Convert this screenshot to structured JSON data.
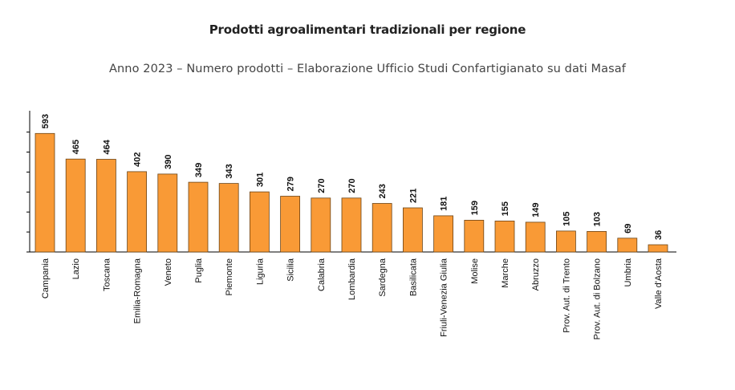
{
  "chart_data": {
    "type": "bar",
    "title": "Prodotti agroalimentari tradizionali per regione",
    "subtitle": "Anno 2023 – Numero prodotti – Elaborazione Ufficio Studi Confartigianato su dati Masaf",
    "categories": [
      "Campania",
      "Lazio",
      "Toscana",
      "Emilia-Romagna",
      "Veneto",
      "Puglia",
      "Piemonte",
      "Liguria",
      "Sicilia",
      "Calabria",
      "Lombardia",
      "Sardegna",
      "Basilicata",
      "Friuli-Venezia Giulia",
      "Molise",
      "Marche",
      "Abruzzo",
      "Prov. Aut. di Trento",
      "Prov. Aut. di Bolzano",
      "Umbria",
      "Valle d'Aosta"
    ],
    "values": [
      593,
      465,
      464,
      402,
      390,
      349,
      343,
      301,
      279,
      270,
      270,
      243,
      221,
      181,
      159,
      155,
      149,
      105,
      103,
      69,
      36
    ],
    "ylim": [
      0,
      600
    ],
    "bar_color": "#f99a36",
    "grid": false
  }
}
